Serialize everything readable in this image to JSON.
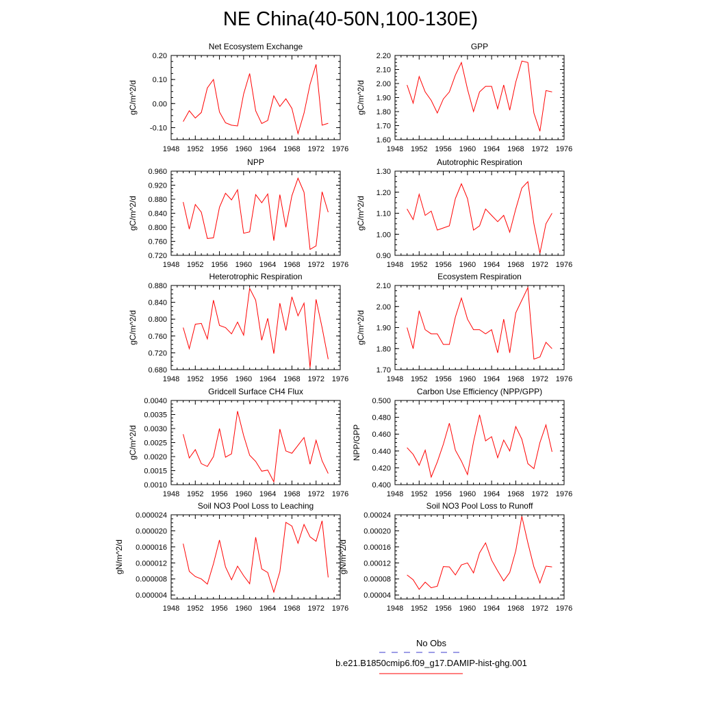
{
  "title": "NE China(40-50N,100-130E)",
  "colors": {
    "series": "#ff0000",
    "obs": "#3b3bcc"
  },
  "legend": {
    "obs_label": "No Obs",
    "model_label": "b.e21.B1850cmip6.f09_g17.DAMIP-hist-ghg.001"
  },
  "chart_data": [
    {
      "type": "line",
      "title": "Net Ecosystem Exchange",
      "ylabel": "gC/m^2/d",
      "xlim": [
        1948,
        1976
      ],
      "xticks": [
        "1948",
        "1952",
        "1956",
        "1960",
        "1964",
        "1968",
        "1972",
        "1976"
      ],
      "ylim": [
        -0.15,
        0.2
      ],
      "yticks": [
        "-0.10",
        "0.00",
        "0.10",
        "0.20"
      ],
      "ytick_values": [
        -0.1,
        0.0,
        0.1,
        0.2
      ],
      "x": [
        1950,
        1951,
        1952,
        1953,
        1954,
        1955,
        1956,
        1957,
        1958,
        1959,
        1960,
        1961,
        1962,
        1963,
        1964,
        1965,
        1966,
        1967,
        1968,
        1969,
        1970,
        1971,
        1972,
        1973,
        1974
      ],
      "values": [
        -0.075,
        -0.03,
        -0.06,
        -0.037,
        0.065,
        0.1,
        -0.035,
        -0.08,
        -0.09,
        -0.093,
        0.04,
        0.125,
        -0.03,
        -0.083,
        -0.07,
        0.032,
        -0.012,
        0.02,
        -0.02,
        -0.125,
        -0.04,
        0.08,
        0.163,
        -0.09,
        -0.082
      ]
    },
    {
      "type": "line",
      "title": "GPP",
      "ylabel": "gC/m^2/d",
      "xlim": [
        1948,
        1976
      ],
      "xticks": [
        "1948",
        "1952",
        "1956",
        "1960",
        "1964",
        "1968",
        "1972",
        "1976"
      ],
      "ylim": [
        1.6,
        2.2
      ],
      "yticks": [
        "1.60",
        "1.70",
        "1.80",
        "1.90",
        "2.00",
        "2.10",
        "2.20"
      ],
      "ytick_values": [
        1.6,
        1.7,
        1.8,
        1.9,
        2.0,
        2.1,
        2.2
      ],
      "x": [
        1950,
        1951,
        1952,
        1953,
        1954,
        1955,
        1956,
        1957,
        1958,
        1959,
        1960,
        1961,
        1962,
        1963,
        1964,
        1965,
        1966,
        1967,
        1968,
        1969,
        1970,
        1971,
        1972,
        1973,
        1974
      ],
      "values": [
        1.99,
        1.86,
        2.05,
        1.94,
        1.88,
        1.79,
        1.89,
        1.94,
        2.06,
        2.15,
        1.96,
        1.8,
        1.94,
        1.98,
        1.98,
        1.82,
        1.99,
        1.81,
        2.01,
        2.16,
        2.15,
        1.79,
        1.66,
        1.95,
        1.94
      ]
    },
    {
      "type": "line",
      "title": "NPP",
      "ylabel": "gC/m^2/d",
      "xlim": [
        1948,
        1976
      ],
      "xticks": [
        "1948",
        "1952",
        "1956",
        "1960",
        "1964",
        "1968",
        "1972",
        "1976"
      ],
      "ylim": [
        0.72,
        0.96
      ],
      "yticks": [
        "0.720",
        "0.760",
        "0.800",
        "0.840",
        "0.880",
        "0.920",
        "0.960"
      ],
      "ytick_values": [
        0.72,
        0.76,
        0.8,
        0.84,
        0.88,
        0.92,
        0.96
      ],
      "x": [
        1950,
        1951,
        1952,
        1953,
        1954,
        1955,
        1956,
        1957,
        1958,
        1959,
        1960,
        1961,
        1962,
        1963,
        1964,
        1965,
        1966,
        1967,
        1968,
        1969,
        1970,
        1971,
        1972,
        1973,
        1974
      ],
      "values": [
        0.872,
        0.795,
        0.865,
        0.843,
        0.768,
        0.77,
        0.857,
        0.897,
        0.878,
        0.907,
        0.783,
        0.787,
        0.893,
        0.87,
        0.895,
        0.762,
        0.893,
        0.8,
        0.89,
        0.94,
        0.9,
        0.737,
        0.747,
        0.901,
        0.843
      ]
    },
    {
      "type": "line",
      "title": "Autotrophic Respiration",
      "ylabel": "gC/m^2/d",
      "xlim": [
        1948,
        1976
      ],
      "xticks": [
        "1948",
        "1952",
        "1956",
        "1960",
        "1964",
        "1968",
        "1972",
        "1976"
      ],
      "ylim": [
        0.9,
        1.3
      ],
      "yticks": [
        "0.90",
        "1.00",
        "1.10",
        "1.20",
        "1.30"
      ],
      "ytick_values": [
        0.9,
        1.0,
        1.1,
        1.2,
        1.3
      ],
      "x": [
        1950,
        1951,
        1952,
        1953,
        1954,
        1955,
        1956,
        1957,
        1958,
        1959,
        1960,
        1961,
        1962,
        1963,
        1964,
        1965,
        1966,
        1967,
        1968,
        1969,
        1970,
        1971,
        1972,
        1973,
        1974
      ],
      "values": [
        1.12,
        1.07,
        1.19,
        1.09,
        1.11,
        1.02,
        1.03,
        1.04,
        1.17,
        1.24,
        1.17,
        1.02,
        1.04,
        1.12,
        1.09,
        1.06,
        1.09,
        1.01,
        1.12,
        1.22,
        1.25,
        1.05,
        0.91,
        1.05,
        1.1
      ]
    },
    {
      "type": "line",
      "title": "Heterotrophic Respiration",
      "ylabel": "gC/m^2/d",
      "xlim": [
        1948,
        1976
      ],
      "xticks": [
        "1948",
        "1952",
        "1956",
        "1960",
        "1964",
        "1968",
        "1972",
        "1976"
      ],
      "ylim": [
        0.68,
        0.88
      ],
      "yticks": [
        "0.680",
        "0.720",
        "0.760",
        "0.800",
        "0.840",
        "0.880"
      ],
      "ytick_values": [
        0.68,
        0.72,
        0.76,
        0.8,
        0.84,
        0.88
      ],
      "x": [
        1950,
        1951,
        1952,
        1953,
        1954,
        1955,
        1956,
        1957,
        1958,
        1959,
        1960,
        1961,
        1962,
        1963,
        1964,
        1965,
        1966,
        1967,
        1968,
        1969,
        1970,
        1971,
        1972,
        1973,
        1974
      ],
      "values": [
        0.78,
        0.73,
        0.788,
        0.79,
        0.753,
        0.845,
        0.785,
        0.78,
        0.765,
        0.793,
        0.762,
        0.873,
        0.845,
        0.75,
        0.802,
        0.718,
        0.838,
        0.773,
        0.853,
        0.808,
        0.838,
        0.685,
        0.847,
        0.78,
        0.705
      ]
    },
    {
      "type": "line",
      "title": "Ecosystem Respiration",
      "ylabel": "gC/m^2/d",
      "xlim": [
        1948,
        1976
      ],
      "xticks": [
        "1948",
        "1952",
        "1956",
        "1960",
        "1964",
        "1968",
        "1972",
        "1976"
      ],
      "ylim": [
        1.7,
        2.1
      ],
      "yticks": [
        "1.70",
        "1.80",
        "1.90",
        "2.00",
        "2.10"
      ],
      "ytick_values": [
        1.7,
        1.8,
        1.9,
        2.0,
        2.1
      ],
      "x": [
        1950,
        1951,
        1952,
        1953,
        1954,
        1955,
        1956,
        1957,
        1958,
        1959,
        1960,
        1961,
        1962,
        1963,
        1964,
        1965,
        1966,
        1967,
        1968,
        1969,
        1970,
        1971,
        1972,
        1973,
        1974
      ],
      "values": [
        1.9,
        1.8,
        1.98,
        1.89,
        1.87,
        1.87,
        1.82,
        1.82,
        1.95,
        2.04,
        1.94,
        1.89,
        1.89,
        1.87,
        1.89,
        1.78,
        1.94,
        1.78,
        1.97,
        2.03,
        2.09,
        1.75,
        1.76,
        1.83,
        1.8
      ]
    },
    {
      "type": "line",
      "title": "Gridcell Surface CH4 Flux",
      "ylabel": "gC/m^2/d",
      "xlim": [
        1948,
        1976
      ],
      "xticks": [
        "1948",
        "1952",
        "1956",
        "1960",
        "1964",
        "1968",
        "1972",
        "1976"
      ],
      "ylim": [
        0.001,
        0.004
      ],
      "yticks": [
        "0.0010",
        "0.0015",
        "0.0020",
        "0.0025",
        "0.0030",
        "0.0035",
        "0.0040"
      ],
      "ytick_values": [
        0.001,
        0.0015,
        0.002,
        0.0025,
        0.003,
        0.0035,
        0.004
      ],
      "x": [
        1950,
        1951,
        1952,
        1953,
        1954,
        1955,
        1956,
        1957,
        1958,
        1959,
        1960,
        1961,
        1962,
        1963,
        1964,
        1965,
        1966,
        1967,
        1968,
        1969,
        1970,
        1971,
        1972,
        1973,
        1974
      ],
      "values": [
        0.0028,
        0.00195,
        0.00225,
        0.00175,
        0.00165,
        0.002,
        0.003,
        0.00198,
        0.0021,
        0.00362,
        0.00275,
        0.00205,
        0.00183,
        0.00148,
        0.00152,
        0.0011,
        0.00298,
        0.0022,
        0.00212,
        0.0024,
        0.00268,
        0.00173,
        0.00258,
        0.00185,
        0.0014
      ]
    },
    {
      "type": "line",
      "title": "Carbon Use Efficiency (NPP/GPP)",
      "ylabel": "NPP/GPP",
      "xlim": [
        1948,
        1976
      ],
      "xticks": [
        "1948",
        "1952",
        "1956",
        "1960",
        "1964",
        "1968",
        "1972",
        "1976"
      ],
      "ylim": [
        0.4,
        0.5
      ],
      "yticks": [
        "0.400",
        "0.420",
        "0.440",
        "0.460",
        "0.480",
        "0.500"
      ],
      "ytick_values": [
        0.4,
        0.42,
        0.44,
        0.46,
        0.48,
        0.5
      ],
      "x": [
        1950,
        1951,
        1952,
        1953,
        1954,
        1955,
        1956,
        1957,
        1958,
        1959,
        1960,
        1961,
        1962,
        1963,
        1964,
        1965,
        1966,
        1967,
        1968,
        1969,
        1970,
        1971,
        1972,
        1973,
        1974
      ],
      "values": [
        0.444,
        0.436,
        0.423,
        0.441,
        0.409,
        0.427,
        0.448,
        0.473,
        0.441,
        0.428,
        0.412,
        0.451,
        0.483,
        0.452,
        0.457,
        0.432,
        0.453,
        0.44,
        0.469,
        0.454,
        0.425,
        0.419,
        0.45,
        0.471,
        0.439
      ]
    },
    {
      "type": "line",
      "title": "Soil NO3 Pool Loss to Leaching",
      "ylabel": "gN/m^2/d",
      "xlim": [
        1948,
        1976
      ],
      "xticks": [
        "1948",
        "1952",
        "1956",
        "1960",
        "1964",
        "1968",
        "1972",
        "1976"
      ],
      "ylim": [
        3e-06,
        2.4e-05
      ],
      "yticks": [
        "0.000004",
        "0.000008",
        "0.000012",
        "0.000016",
        "0.000020",
        "0.000024"
      ],
      "ytick_values": [
        4e-06,
        8e-06,
        1.2e-05,
        1.6e-05,
        2e-05,
        2.4e-05
      ],
      "x": [
        1950,
        1951,
        1952,
        1953,
        1954,
        1955,
        1956,
        1957,
        1958,
        1959,
        1960,
        1961,
        1962,
        1963,
        1964,
        1965,
        1966,
        1967,
        1968,
        1969,
        1970,
        1971,
        1972,
        1973,
        1974
      ],
      "values": [
        1.68e-05,
        9.9e-06,
        8.6e-06,
        8e-06,
        6.7e-06,
        1.18e-05,
        1.77e-05,
        1.1e-05,
        7.8e-06,
        1.12e-05,
        8.8e-06,
        6.8e-06,
        1.84e-05,
        1.05e-05,
        9.6e-06,
        4.7e-06,
        9.8e-06,
        2.21e-05,
        2.12e-05,
        1.69e-05,
        2.16e-05,
        1.85e-05,
        1.74e-05,
        2.25e-05,
        8.4e-06
      ]
    },
    {
      "type": "line",
      "title": "Soil NO3 Pool Loss to Runoff",
      "ylabel": "gN/m^2/d",
      "xlim": [
        1948,
        1976
      ],
      "xticks": [
        "1948",
        "1952",
        "1956",
        "1960",
        "1964",
        "1968",
        "1972",
        "1976"
      ],
      "ylim": [
        3e-05,
        0.00024
      ],
      "yticks": [
        "0.00004",
        "0.00008",
        "0.00012",
        "0.00016",
        "0.00020",
        "0.00024"
      ],
      "ytick_values": [
        4e-05,
        8e-05,
        0.00012,
        0.00016,
        0.0002,
        0.00024
      ],
      "x": [
        1950,
        1951,
        1952,
        1953,
        1954,
        1955,
        1956,
        1957,
        1958,
        1959,
        1960,
        1961,
        1962,
        1963,
        1964,
        1965,
        1966,
        1967,
        1968,
        1969,
        1970,
        1971,
        1972,
        1973,
        1974
      ],
      "values": [
        9e-05,
        7.8e-05,
        5.4e-05,
        7.2e-05,
        5.8e-05,
        6.2e-05,
        0.000111,
        0.00011,
        9e-05,
        0.000115,
        0.00012,
        9.5e-05,
        0.000145,
        0.00017,
        0.000127,
        0.0001,
        7.5e-05,
        9.6e-05,
        0.00015,
        0.000236,
        0.00017,
        0.00011,
        7e-05,
        0.000112,
        0.00011
      ]
    }
  ]
}
